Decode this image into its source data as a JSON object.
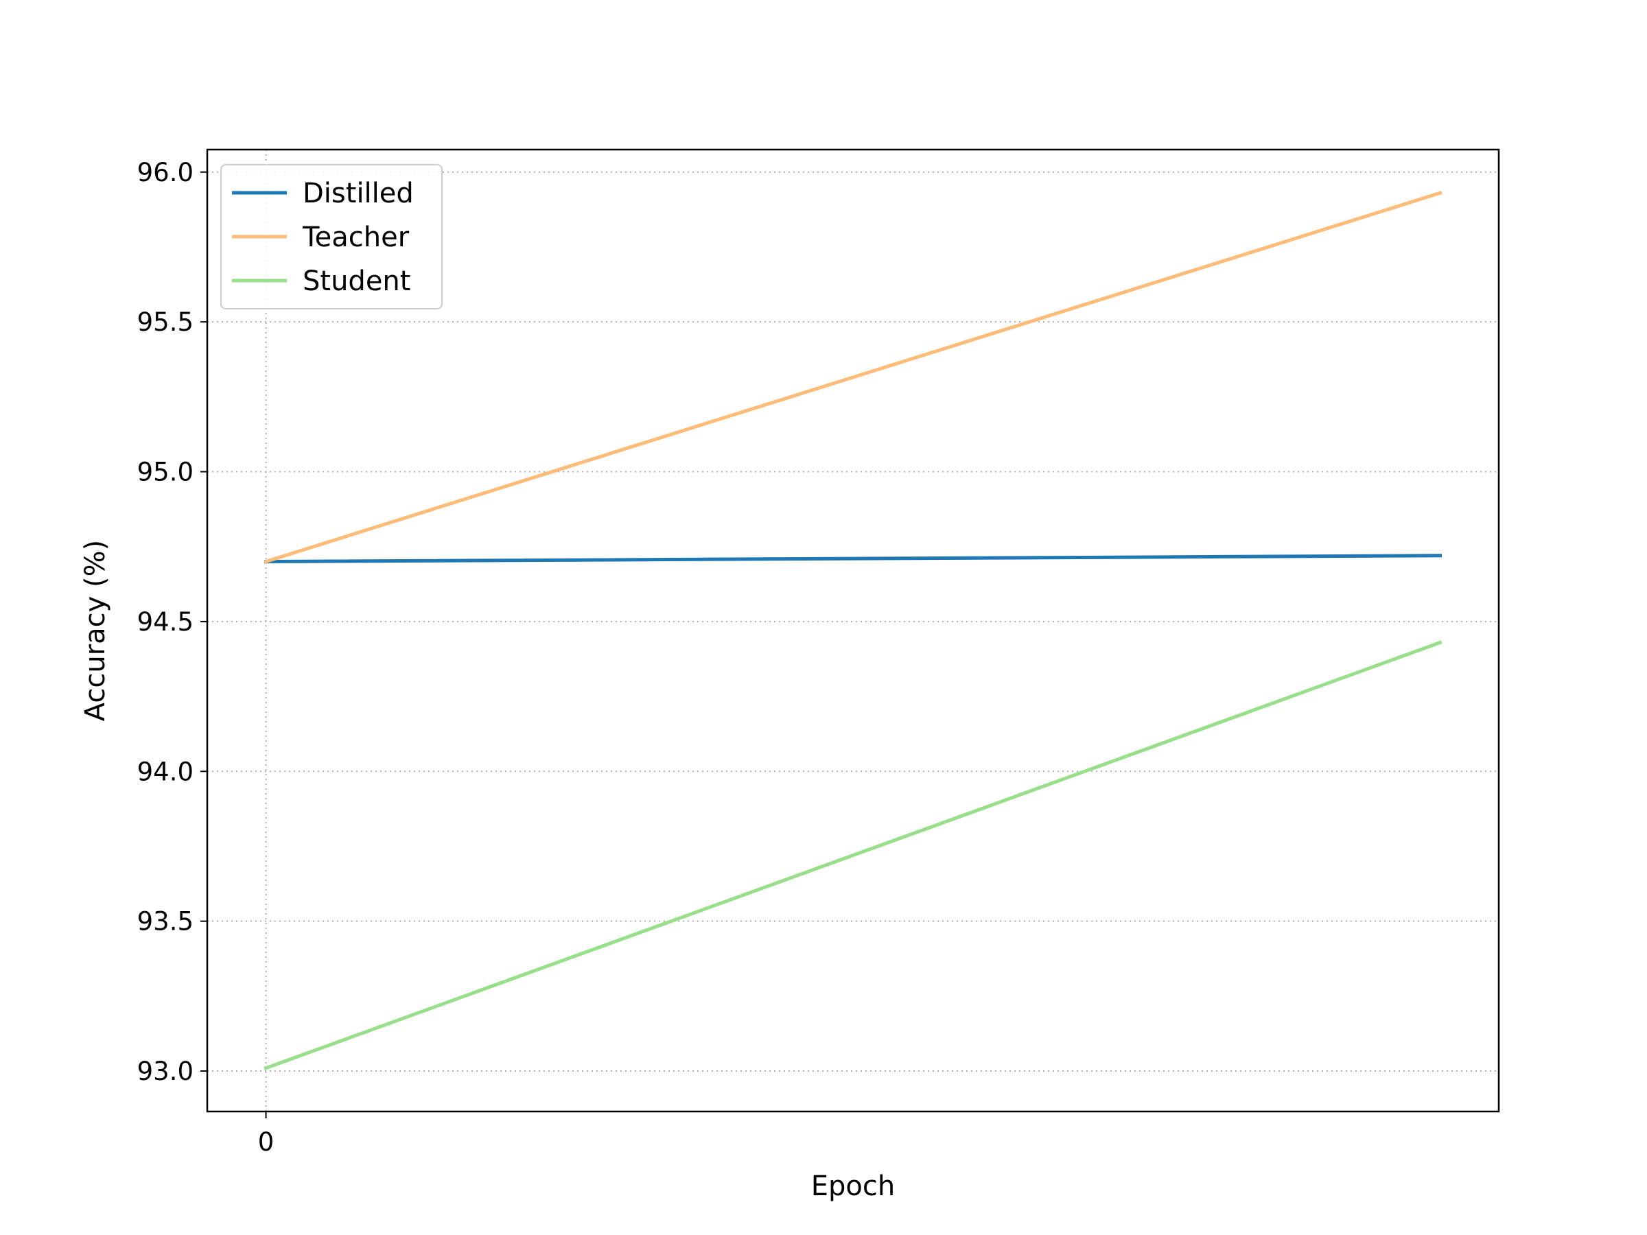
{
  "chart_data": {
    "type": "line",
    "title": "",
    "xlabel": "Epoch",
    "ylabel": "Accuracy (%)",
    "xlim": [
      -0.05,
      1.05
    ],
    "ylim": [
      92.865,
      96.075
    ],
    "x_ticks": [
      0
    ],
    "x_tick_labels": [
      "0"
    ],
    "y_ticks": [
      93.0,
      93.5,
      94.0,
      94.5,
      95.0,
      95.5,
      96.0
    ],
    "y_tick_labels": [
      "93.0",
      "93.5",
      "94.0",
      "94.5",
      "95.0",
      "95.5",
      "96.0"
    ],
    "grid": true,
    "legend_position": "top-left",
    "x": [
      0,
      1
    ],
    "series": [
      {
        "name": "Distilled",
        "values": [
          94.7,
          94.72
        ],
        "color": "#1f77b4"
      },
      {
        "name": "Teacher",
        "values": [
          94.7,
          95.93
        ],
        "color": "#ffbb78"
      },
      {
        "name": "Student",
        "values": [
          93.01,
          94.43
        ],
        "color": "#98df8a"
      }
    ]
  }
}
